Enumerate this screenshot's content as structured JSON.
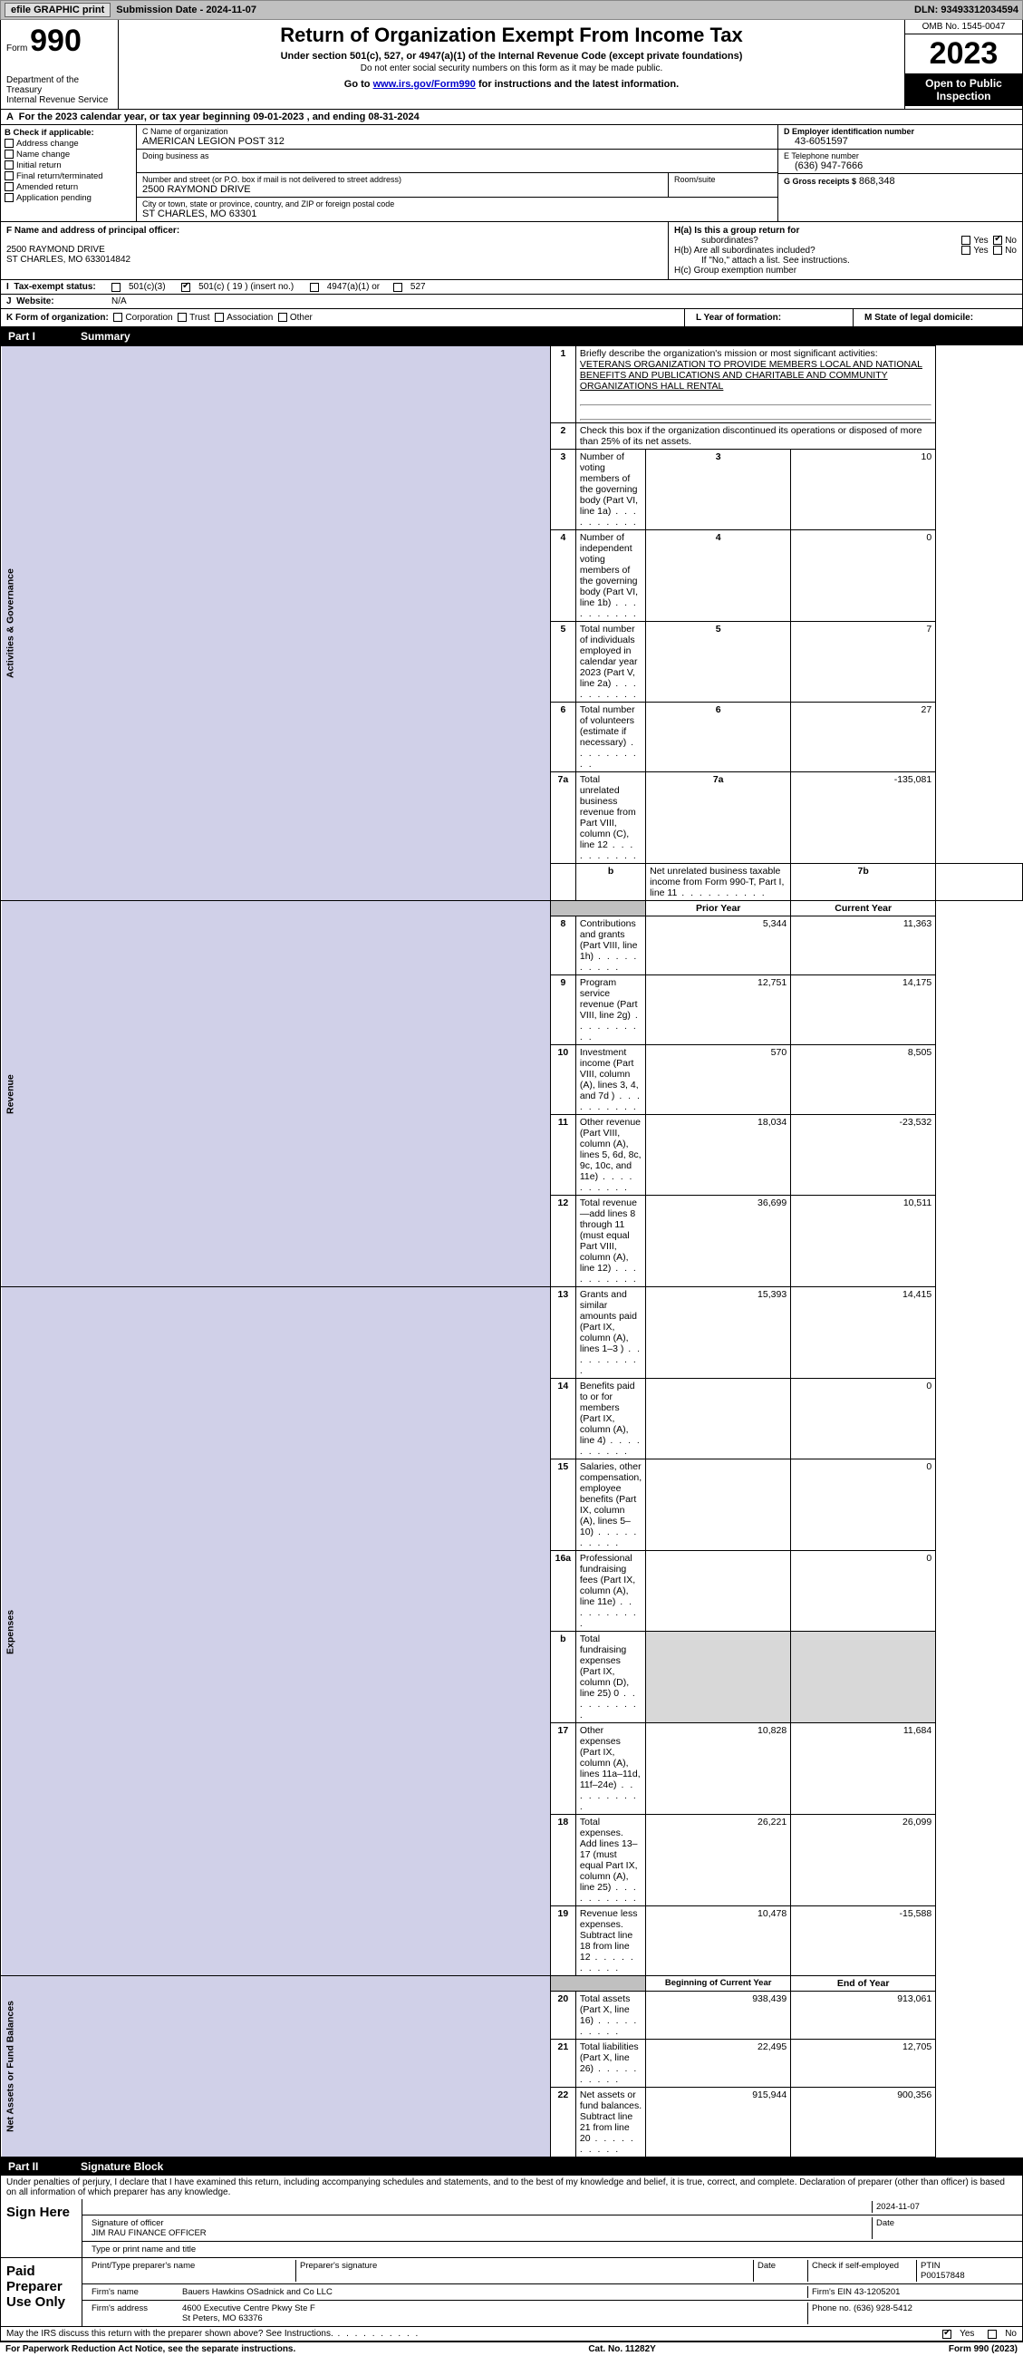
{
  "topbar": {
    "efile": "efile GRAPHIC print",
    "submission": "Submission Date - 2024-11-07",
    "dln": "DLN: 93493312034594"
  },
  "header": {
    "form_word": "Form",
    "form_num": "990",
    "dept": "Department of the Treasury",
    "irs": "Internal Revenue Service",
    "title": "Return of Organization Exempt From Income Tax",
    "sub": "Under section 501(c), 527, or 4947(a)(1) of the Internal Revenue Code (except private foundations)",
    "sub2": "Do not enter social security numbers on this form as it may be made public.",
    "goto_pre": "Go to ",
    "goto_link": "www.irs.gov/Form990",
    "goto_post": " for instructions and the latest information.",
    "omb": "OMB No. 1545-0047",
    "year": "2023",
    "inspect": "Open to Public Inspection"
  },
  "cal": "For the 2023 calendar year, or tax year beginning 09-01-2023   , and ending 08-31-2024",
  "boxB": {
    "title": "B Check if applicable:",
    "items": [
      "Address change",
      "Name change",
      "Initial return",
      "Final return/terminated",
      "Amended return",
      "Application pending"
    ]
  },
  "boxC": {
    "name_lbl": "C Name of organization",
    "name": "AMERICAN LEGION POST 312",
    "dba_lbl": "Doing business as",
    "street_lbl": "Number and street (or P.O. box if mail is not delivered to street address)",
    "room_lbl": "Room/suite",
    "street": "2500 RAYMOND DRIVE",
    "city_lbl": "City or town, state or province, country, and ZIP or foreign postal code",
    "city": "ST CHARLES, MO  63301"
  },
  "boxD": {
    "lbl": "D Employer identification number",
    "val": "43-6051597"
  },
  "boxE": {
    "lbl": "E Telephone number",
    "val": "(636) 947-7666"
  },
  "boxG": {
    "lbl": "G Gross receipts $",
    "val": "868,348"
  },
  "boxF": {
    "lbl": "F  Name and address of principal officer:",
    "l1": "2500 RAYMOND DRIVE",
    "l2": "ST CHARLES, MO  633014842"
  },
  "boxH": {
    "ha": "H(a)  Is this a group return for",
    "ha2": "subordinates?",
    "hb": "H(b)  Are all subordinates included?",
    "hb2": "If \"No,\" attach a list. See instructions.",
    "hc": "H(c)  Group exemption number",
    "yes": "Yes",
    "no": "No"
  },
  "boxI": {
    "lbl": "Tax-exempt status:",
    "o1": "501(c)(3)",
    "o2": "501(c) ( 19 ) (insert no.)",
    "o3": "4947(a)(1) or",
    "o4": "527"
  },
  "boxJ": {
    "lbl": "Website:",
    "val": "N/A"
  },
  "boxK": {
    "lbl": "K Form of organization:",
    "o": [
      "Corporation",
      "Trust",
      "Association",
      "Other"
    ]
  },
  "boxL": "L Year of formation:",
  "boxM": "M State of legal domicile:",
  "part1": {
    "num": "Part I",
    "title": "Summary"
  },
  "summary": {
    "l1_lbl": "Briefly describe the organization's mission or most significant activities:",
    "l1_txt": "VETERANS ORGANIZATION TO PROVIDE MEMBERS LOCAL AND NATIONAL BENEFITS AND PUBLICATIONS AND CHARITABLE AND COMMUNITY ORGANIZATIONS HALL RENTAL",
    "l2": "Check this box      if the organization discontinued its operations or disposed of more than 25% of its net assets.",
    "rows_ag": [
      {
        "n": "3",
        "d": "Number of voting members of the governing body (Part VI, line 1a)",
        "b": "3",
        "v": "10"
      },
      {
        "n": "4",
        "d": "Number of independent voting members of the governing body (Part VI, line 1b)",
        "b": "4",
        "v": "0"
      },
      {
        "n": "5",
        "d": "Total number of individuals employed in calendar year 2023 (Part V, line 2a)",
        "b": "5",
        "v": "7"
      },
      {
        "n": "6",
        "d": "Total number of volunteers (estimate if necessary)",
        "b": "6",
        "v": "27"
      },
      {
        "n": "7a",
        "d": "Total unrelated business revenue from Part VIII, column (C), line 12",
        "b": "7a",
        "v": "-135,081"
      },
      {
        "n": "b",
        "d": "Net unrelated business taxable income from Form 990-T, Part I, line 11",
        "b": "7b",
        "v": ""
      }
    ],
    "col_prior": "Prior Year",
    "col_curr": "Current Year",
    "rows_rev": [
      {
        "n": "8",
        "d": "Contributions and grants (Part VIII, line 1h)",
        "p": "5,344",
        "c": "11,363"
      },
      {
        "n": "9",
        "d": "Program service revenue (Part VIII, line 2g)",
        "p": "12,751",
        "c": "14,175"
      },
      {
        "n": "10",
        "d": "Investment income (Part VIII, column (A), lines 3, 4, and 7d )",
        "p": "570",
        "c": "8,505"
      },
      {
        "n": "11",
        "d": "Other revenue (Part VIII, column (A), lines 5, 6d, 8c, 9c, 10c, and 11e)",
        "p": "18,034",
        "c": "-23,532"
      },
      {
        "n": "12",
        "d": "Total revenue—add lines 8 through 11 (must equal Part VIII, column (A), line 12)",
        "p": "36,699",
        "c": "10,511"
      }
    ],
    "rows_exp": [
      {
        "n": "13",
        "d": "Grants and similar amounts paid (Part IX, column (A), lines 1–3 )",
        "p": "15,393",
        "c": "14,415"
      },
      {
        "n": "14",
        "d": "Benefits paid to or for members (Part IX, column (A), line 4)",
        "p": "",
        "c": "0"
      },
      {
        "n": "15",
        "d": "Salaries, other compensation, employee benefits (Part IX, column (A), lines 5–10)",
        "p": "",
        "c": "0"
      },
      {
        "n": "16a",
        "d": "Professional fundraising fees (Part IX, column (A), line 11e)",
        "p": "",
        "c": "0"
      },
      {
        "n": "b",
        "d": "Total fundraising expenses (Part IX, column (D), line 25) 0",
        "p": "shade",
        "c": "shade"
      },
      {
        "n": "17",
        "d": "Other expenses (Part IX, column (A), lines 11a–11d, 11f–24e)",
        "p": "10,828",
        "c": "11,684"
      },
      {
        "n": "18",
        "d": "Total expenses. Add lines 13–17 (must equal Part IX, column (A), line 25)",
        "p": "26,221",
        "c": "26,099"
      },
      {
        "n": "19",
        "d": "Revenue less expenses. Subtract line 18 from line 12",
        "p": "10,478",
        "c": "-15,588"
      }
    ],
    "col_beg": "Beginning of Current Year",
    "col_end": "End of Year",
    "rows_na": [
      {
        "n": "20",
        "d": "Total assets (Part X, line 16)",
        "p": "938,439",
        "c": "913,061"
      },
      {
        "n": "21",
        "d": "Total liabilities (Part X, line 26)",
        "p": "22,495",
        "c": "12,705"
      },
      {
        "n": "22",
        "d": "Net assets or fund balances. Subtract line 21 from line 20",
        "p": "915,944",
        "c": "900,356"
      }
    ],
    "side_ag": "Activities & Governance",
    "side_rev": "Revenue",
    "side_exp": "Expenses",
    "side_na": "Net Assets or Fund Balances"
  },
  "part2": {
    "num": "Part II",
    "title": "Signature Block"
  },
  "sig": {
    "decl": "Under penalties of perjury, I declare that I have examined this return, including accompanying schedules and statements, and to the best of my knowledge and belief, it is true, correct, and complete. Declaration of preparer (other than officer) is based on all information of which preparer has any knowledge.",
    "sign_here": "Sign Here",
    "date": "2024-11-07",
    "sig_officer": "Signature of officer",
    "officer": "JIM RAU  FINANCE OFFICER",
    "type_name": "Type or print name and title",
    "date_lbl": "Date",
    "paid": "Paid Preparer Use Only",
    "prep_name_lbl": "Print/Type preparer's name",
    "prep_sig_lbl": "Preparer's signature",
    "check_self": "Check        if self-employed",
    "ptin_lbl": "PTIN",
    "ptin": "P00157848",
    "firm_name_lbl": "Firm's name",
    "firm_name": "Bauers Hawkins OSadnick and Co LLC",
    "firm_ein_lbl": "Firm's EIN",
    "firm_ein": "43-1205201",
    "firm_addr_lbl": "Firm's address",
    "firm_addr1": "4600 Executive Centre Pkwy Ste F",
    "firm_addr2": "St Peters, MO  63376",
    "phone_lbl": "Phone no.",
    "phone": "(636) 928-5412",
    "discuss": "May the IRS discuss this return with the preparer shown above? See Instructions.",
    "yes": "Yes",
    "no": "No"
  },
  "footer": {
    "left": "For Paperwork Reduction Act Notice, see the separate instructions.",
    "mid": "Cat. No. 11282Y",
    "right": "Form 990 (2023)"
  }
}
